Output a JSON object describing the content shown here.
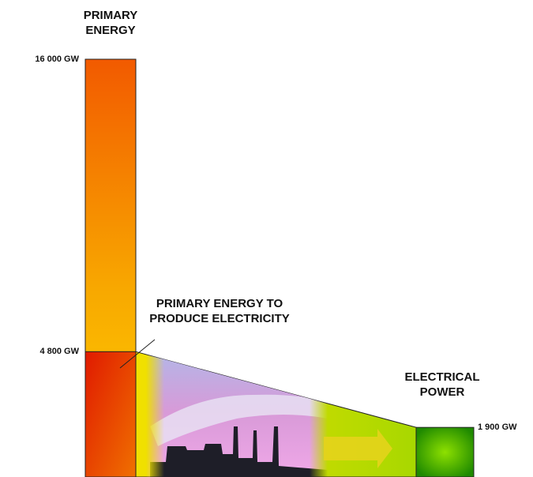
{
  "chart_data": {
    "type": "energy-flow",
    "ylim": [
      0,
      16000
    ],
    "series": [
      {
        "name": "PRIMARY ENERGY",
        "color": "#f25a00",
        "values": [
          16000
        ],
        "value_labels": [
          "16 000 GW"
        ]
      },
      {
        "name": "PRIMARY ENERGY TO PRODUCE ELECTRICITY",
        "color": "#e01a00",
        "values": [
          4800
        ],
        "value_labels": [
          "4 800 GW"
        ]
      },
      {
        "name": "ELECTRICAL POWER",
        "color": "#3aa800",
        "values": [
          1900
        ],
        "value_labels": [
          "1 900 GW"
        ]
      }
    ]
  }
}
